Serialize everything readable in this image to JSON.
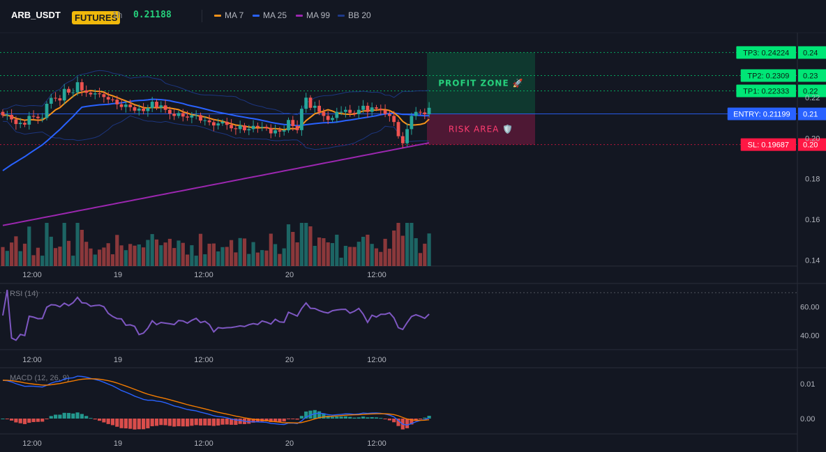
{
  "header": {
    "symbol": "ARB_USDT",
    "badge": "FUTURES",
    "interval": "1h",
    "price": "0.21188",
    "indicators": [
      {
        "label": "MA 7",
        "color": "#f7931a"
      },
      {
        "label": "MA 25",
        "color": "#2962ff"
      },
      {
        "label": "MA 99",
        "color": "#9c27b0"
      },
      {
        "label": "BB 20",
        "color": "#1e3a8a"
      }
    ]
  },
  "colors": {
    "up": "#26a69a",
    "down": "#ef5350",
    "tp": "#00e676",
    "entry": "#2962ff",
    "sl": "#ff1744",
    "ma7": "#f7931a",
    "ma25": "#2962ff",
    "ma99": "#9c27b0",
    "bb": "#1e3a8a",
    "rsi": "#7e57c2",
    "macd": "#2962ff",
    "signal": "#f57c00"
  },
  "chart_data": [
    {
      "type": "candlestick",
      "x_ticks": [
        "12:00",
        "19",
        "12:00",
        "20",
        "12:00"
      ],
      "y_ticks": [
        "0.22",
        "0.20",
        "0.18",
        "0.16",
        "0.14"
      ],
      "ylim": [
        0.137,
        0.252
      ],
      "levels": [
        {
          "label": "TP3: 0.24224",
          "axis": "0.24",
          "value": 0.24224,
          "kind": "tp"
        },
        {
          "label": "TP2: 0.2309",
          "axis": "0.23",
          "value": 0.2309,
          "kind": "tp"
        },
        {
          "label": "TP1: 0.22333",
          "axis": "0.22",
          "value": 0.22333,
          "kind": "tp"
        },
        {
          "label": "ENTRY: 0.21199",
          "axis": "0.21",
          "value": 0.21199,
          "kind": "entry"
        },
        {
          "label": "SL: 0.19687",
          "axis": "0.20",
          "value": 0.19687,
          "kind": "sl"
        }
      ],
      "zones": {
        "profit_label": "PROFIT ZONE 🚀",
        "risk_label": "RISK AREA 🛡️"
      },
      "close": [
        0.2113,
        0.2115,
        0.2093,
        0.207,
        0.2076,
        0.2067,
        0.211,
        0.2106,
        0.2099,
        0.21,
        0.217,
        0.2199,
        0.2197,
        0.2186,
        0.2243,
        0.2225,
        0.2226,
        0.2276,
        0.2236,
        0.2224,
        0.2216,
        0.2221,
        0.2217,
        0.2203,
        0.2191,
        0.219,
        0.2167,
        0.2154,
        0.2166,
        0.2153,
        0.2136,
        0.2146,
        0.2134,
        0.2149,
        0.218,
        0.2151,
        0.2162,
        0.214,
        0.2121,
        0.211,
        0.2124,
        0.2107,
        0.2102,
        0.2113,
        0.2114,
        0.2087,
        0.2088,
        0.2079,
        0.2063,
        0.2073,
        0.2081,
        0.2066,
        0.2049,
        0.2045,
        0.2063,
        0.2039,
        0.2045,
        0.2061,
        0.2055,
        0.2056,
        0.2049,
        0.2024,
        0.2039,
        0.2033,
        0.2039,
        0.209,
        0.206,
        0.204,
        0.2145,
        0.22,
        0.215,
        0.216,
        0.213,
        0.211,
        0.209,
        0.21,
        0.213,
        0.213,
        0.214,
        0.2125,
        0.2119,
        0.214,
        0.216,
        0.213,
        0.2152,
        0.2146,
        0.2139,
        0.212,
        0.211,
        0.208,
        0.201,
        0.1975,
        0.2045,
        0.211,
        0.213,
        0.2127,
        0.2118,
        0.215
      ],
      "macd_ticks": [
        "0.01",
        "0.00"
      ],
      "rsi_ticks": [
        "60.00",
        "40.00"
      ]
    }
  ],
  "indicators": {
    "rsi_label": "RSI (14)",
    "macd_label": "MACD (12, 26, 9)"
  }
}
